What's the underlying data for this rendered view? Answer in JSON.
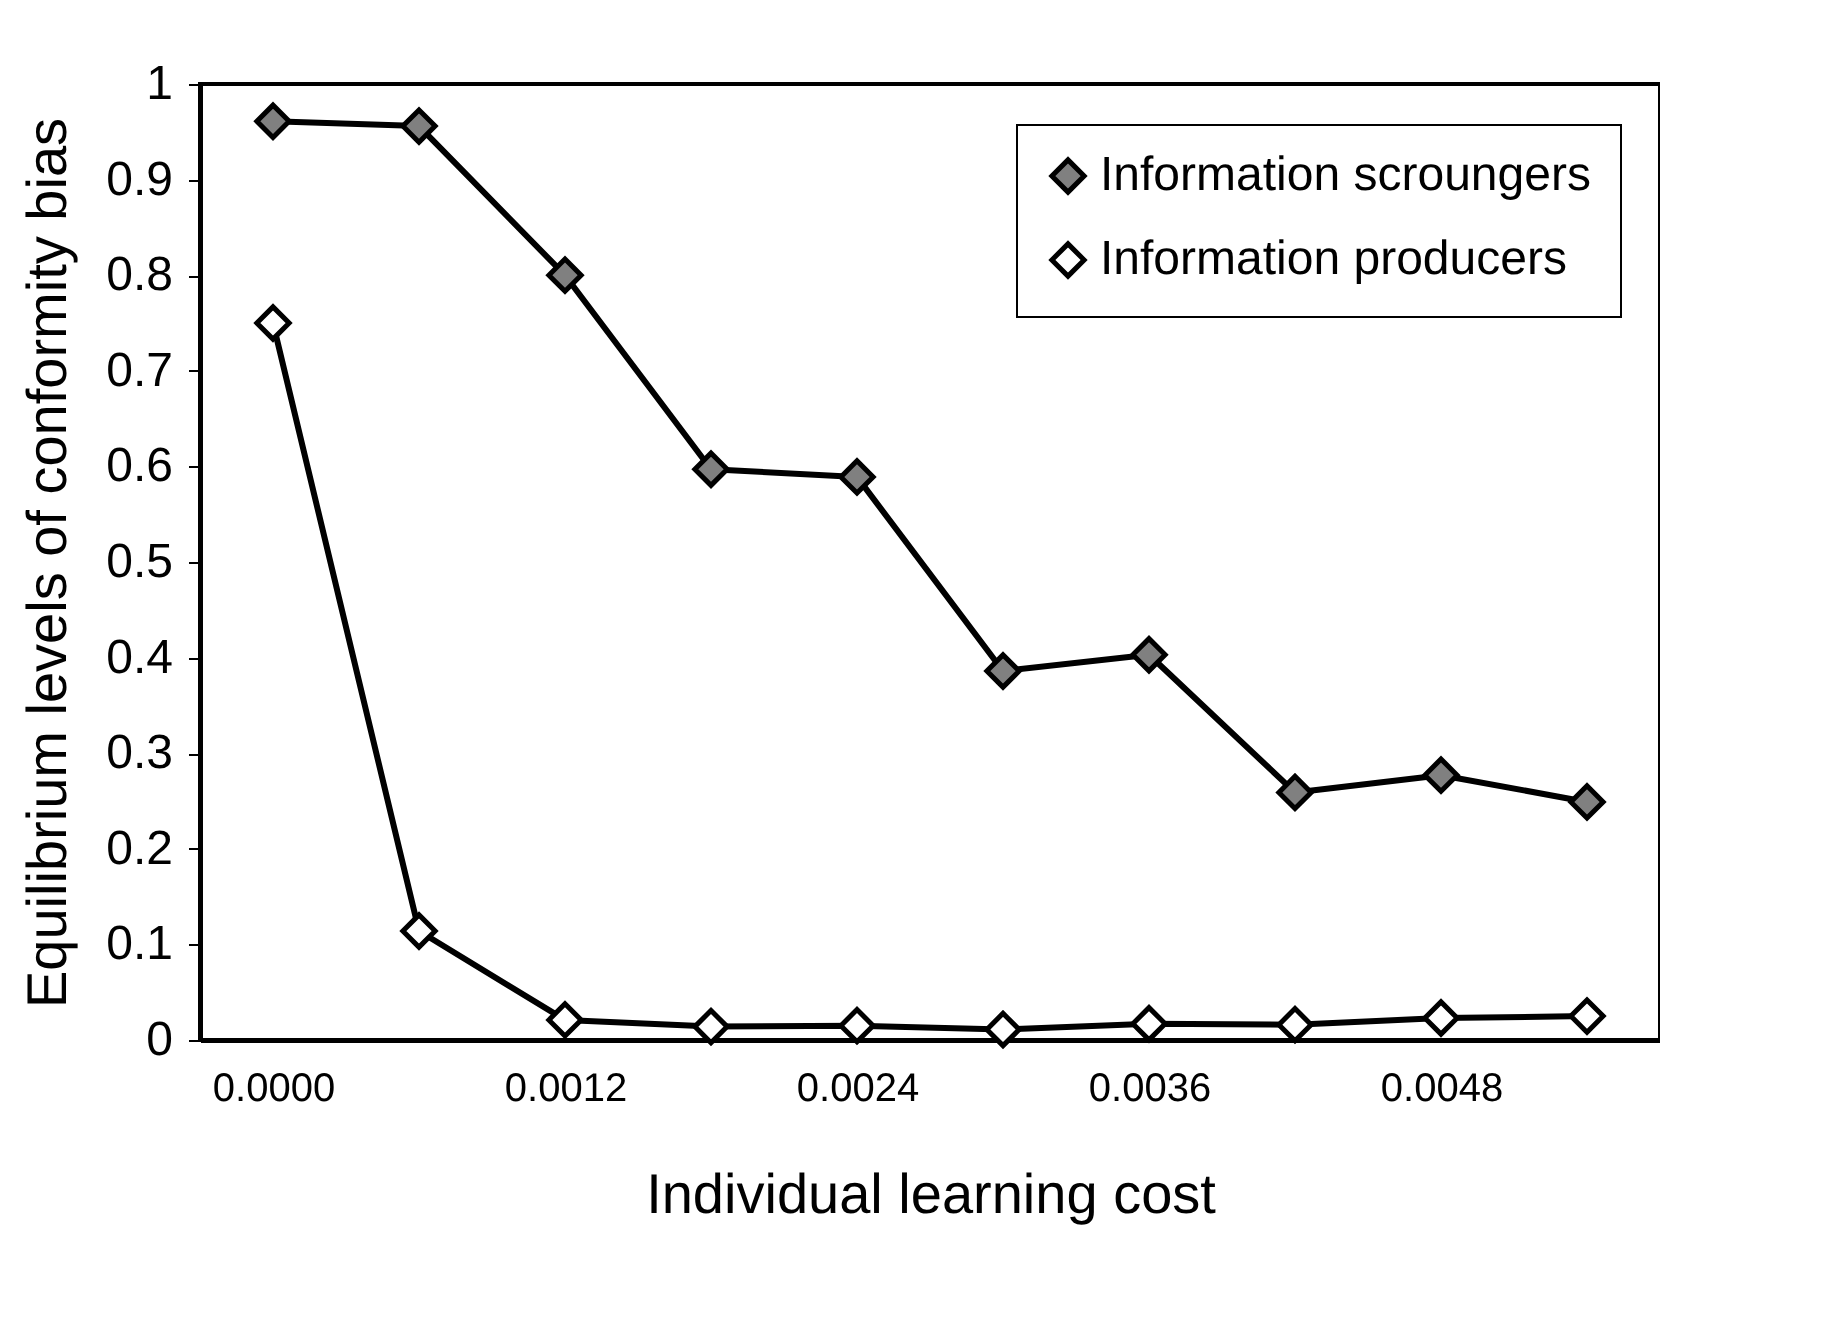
{
  "chart_data": {
    "type": "line",
    "xlabel": "Individual learning cost",
    "ylabel": "Equilibrium levels of conformity bias",
    "categories": [
      "0.0000",
      null,
      "0.0012",
      null,
      "0.0024",
      null,
      "0.0036",
      null,
      "0.0048",
      null
    ],
    "series": [
      {
        "name": "Information scroungers",
        "color": "#808080",
        "values": [
          0.961,
          0.956,
          0.8,
          0.597,
          0.589,
          0.386,
          0.403,
          0.259,
          0.277,
          0.249
        ]
      },
      {
        "name": "Information producers",
        "color": "#ffffff",
        "values": [
          0.75,
          0.114,
          0.021,
          0.014,
          0.015,
          0.011,
          0.017,
          0.016,
          0.023,
          0.025
        ]
      }
    ],
    "ylim": [
      0,
      1
    ],
    "yticks": [
      0,
      0.1,
      0.2,
      0.3,
      0.4,
      0.5,
      0.6,
      0.7,
      0.8,
      0.9,
      1
    ],
    "grid": false,
    "legend": "top right",
    "marker": "diamond",
    "line_style": "solid"
  }
}
